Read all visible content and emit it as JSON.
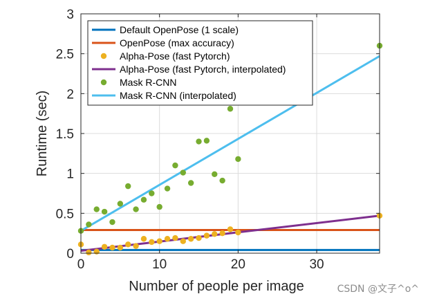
{
  "chart_data": {
    "type": "scatter",
    "title": "",
    "xlabel": "Number of people per image",
    "ylabel": "Runtime (sec)",
    "xlim": [
      0,
      38
    ],
    "ylim": [
      0,
      3
    ],
    "xticks": [
      0,
      10,
      20,
      30
    ],
    "xtick_labels": [
      "0",
      "10",
      "20",
      "30"
    ],
    "yticks": [
      0,
      0.5,
      1,
      1.5,
      2,
      2.5,
      3
    ],
    "ytick_labels": [
      "0",
      "0.5",
      "1",
      "1.5",
      "2",
      "2.5",
      "3"
    ],
    "grid": true,
    "legend_position": "top-left",
    "series": [
      {
        "name": "Default OpenPose (1 scale)",
        "kind": "line",
        "color": "#0072BD",
        "x": [
          0,
          38
        ],
        "y": [
          0.04,
          0.04
        ]
      },
      {
        "name": "OpenPose (max accuracy)",
        "kind": "line",
        "color": "#D95319",
        "x": [
          0,
          38
        ],
        "y": [
          0.29,
          0.29
        ]
      },
      {
        "name": "Alpha-Pose (fast Pytorch)",
        "kind": "scatter",
        "color": "#EDB120",
        "x": [
          0,
          1,
          2,
          3,
          4,
          5,
          6,
          7,
          8,
          9,
          10,
          11,
          12,
          13,
          14,
          15,
          16,
          17,
          18,
          19,
          20,
          38
        ],
        "y": [
          0.11,
          0.01,
          0.02,
          0.08,
          0.07,
          0.07,
          0.11,
          0.09,
          0.18,
          0.14,
          0.15,
          0.18,
          0.19,
          0.15,
          0.18,
          0.19,
          0.22,
          0.24,
          0.25,
          0.3,
          0.26,
          0.47
        ]
      },
      {
        "name": "Alpha-Pose (fast Pytorch, interpolated)",
        "kind": "line",
        "color": "#7E2F8E",
        "x": [
          0,
          38
        ],
        "y": [
          0.03,
          0.47
        ]
      },
      {
        "name": "Mask R-CNN",
        "kind": "scatter",
        "color": "#77AC30",
        "x": [
          0,
          1,
          2,
          3,
          4,
          5,
          6,
          7,
          8,
          9,
          10,
          11,
          12,
          13,
          14,
          15,
          16,
          17,
          18,
          19,
          20,
          38
        ],
        "y": [
          0.28,
          0.36,
          0.55,
          0.52,
          0.39,
          0.62,
          0.84,
          0.55,
          0.67,
          0.75,
          0.58,
          0.81,
          1.1,
          1.01,
          0.88,
          1.4,
          1.41,
          0.99,
          0.91,
          1.81,
          1.18,
          2.6
        ]
      },
      {
        "name": "Mask R-CNN (interpolated)",
        "kind": "line",
        "color": "#4DBEEE",
        "x": [
          0,
          38
        ],
        "y": [
          0.28,
          2.47
        ]
      }
    ]
  },
  "watermark": "CSDN @文子^o^"
}
